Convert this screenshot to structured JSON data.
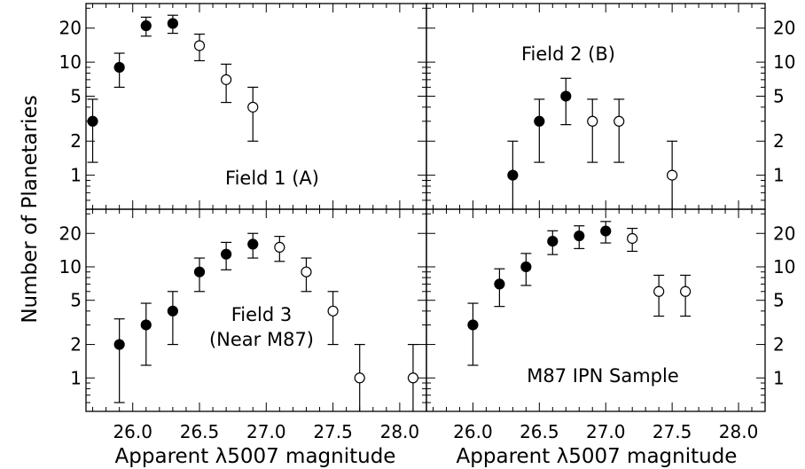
{
  "figure": {
    "ylabel": "Number of Planetaries",
    "xlabel_left": "Apparent λ5007 magnitude",
    "xlabel_right": "Apparent λ5007 magnitude",
    "xtick_labels": [
      "26.0",
      "26.5",
      "27.0",
      "27.5",
      "28.0"
    ],
    "ytick_labels": [
      "20",
      "10",
      "5",
      "2",
      "1"
    ]
  },
  "chart_data": [
    {
      "type": "scatter",
      "panel": "top-left",
      "annotation": "Field 1 (A)",
      "x_range": [
        25.65,
        28.2
      ],
      "y_scale": "log",
      "y_range": [
        0.5,
        33
      ],
      "points": [
        {
          "x": 25.7,
          "y": 3,
          "low": 1.3,
          "high": 4.7,
          "filled": true
        },
        {
          "x": 25.9,
          "y": 9,
          "low": 6,
          "high": 12,
          "filled": true
        },
        {
          "x": 26.1,
          "y": 21,
          "low": 17,
          "high": 25,
          "filled": true
        },
        {
          "x": 26.3,
          "y": 22,
          "low": 18,
          "high": 26,
          "filled": true
        },
        {
          "x": 26.5,
          "y": 14,
          "low": 10.3,
          "high": 17.7,
          "filled": false
        },
        {
          "x": 26.7,
          "y": 7,
          "low": 4.4,
          "high": 9.6,
          "filled": false
        },
        {
          "x": 26.9,
          "y": 4,
          "low": 2,
          "high": 6,
          "filled": false
        }
      ]
    },
    {
      "type": "scatter",
      "panel": "top-right",
      "annotation": "Field 2 (B)",
      "x_range": [
        25.65,
        28.2
      ],
      "y_scale": "log",
      "y_range": [
        0.5,
        33
      ],
      "points": [
        {
          "x": 26.3,
          "y": 1,
          "low": 0.5,
          "high": 2,
          "filled": true
        },
        {
          "x": 26.5,
          "y": 3,
          "low": 1.3,
          "high": 4.7,
          "filled": true
        },
        {
          "x": 26.7,
          "y": 5,
          "low": 2.8,
          "high": 7.2,
          "filled": true
        },
        {
          "x": 26.9,
          "y": 3,
          "low": 1.3,
          "high": 4.7,
          "filled": false
        },
        {
          "x": 27.1,
          "y": 3,
          "low": 1.3,
          "high": 4.7,
          "filled": false
        },
        {
          "x": 27.5,
          "y": 1,
          "low": 0.5,
          "high": 2,
          "filled": false
        }
      ]
    },
    {
      "type": "scatter",
      "panel": "bottom-left",
      "annotation": "Field 3 (Near M87)",
      "annotation_lines": [
        "Field 3",
        "(Near M87)"
      ],
      "x_range": [
        25.65,
        28.2
      ],
      "y_scale": "log",
      "y_range": [
        0.5,
        33
      ],
      "points": [
        {
          "x": 25.9,
          "y": 2,
          "low": 0.6,
          "high": 3.4,
          "filled": true
        },
        {
          "x": 26.1,
          "y": 3,
          "low": 1.3,
          "high": 4.7,
          "filled": true
        },
        {
          "x": 26.3,
          "y": 4,
          "low": 2,
          "high": 6,
          "filled": true
        },
        {
          "x": 26.5,
          "y": 9,
          "low": 6,
          "high": 12,
          "filled": true
        },
        {
          "x": 26.7,
          "y": 13,
          "low": 9.4,
          "high": 16.6,
          "filled": true
        },
        {
          "x": 26.9,
          "y": 16,
          "low": 12,
          "high": 20,
          "filled": true
        },
        {
          "x": 27.1,
          "y": 15,
          "low": 11.2,
          "high": 18.8,
          "filled": false
        },
        {
          "x": 27.3,
          "y": 9,
          "low": 6,
          "high": 12,
          "filled": false
        },
        {
          "x": 27.5,
          "y": 4,
          "low": 2,
          "high": 6,
          "filled": false
        },
        {
          "x": 27.7,
          "y": 1,
          "low": 0.5,
          "high": 2,
          "filled": false
        },
        {
          "x": 28.1,
          "y": 1,
          "low": 0.5,
          "high": 2,
          "filled": false
        }
      ]
    },
    {
      "type": "scatter",
      "panel": "bottom-right",
      "annotation": "M87 IPN Sample",
      "x_range": [
        25.65,
        28.2
      ],
      "y_scale": "log",
      "y_range": [
        0.5,
        33
      ],
      "points": [
        {
          "x": 26.0,
          "y": 3,
          "low": 1.3,
          "high": 4.7,
          "filled": true
        },
        {
          "x": 26.2,
          "y": 7,
          "low": 4.4,
          "high": 9.6,
          "filled": true
        },
        {
          "x": 26.4,
          "y": 10,
          "low": 6.8,
          "high": 13.2,
          "filled": true
        },
        {
          "x": 26.6,
          "y": 17,
          "low": 12.9,
          "high": 21.1,
          "filled": true
        },
        {
          "x": 26.8,
          "y": 19,
          "low": 14.6,
          "high": 23.4,
          "filled": true
        },
        {
          "x": 27.0,
          "y": 21,
          "low": 16.4,
          "high": 25.6,
          "filled": true
        },
        {
          "x": 27.2,
          "y": 18,
          "low": 13.8,
          "high": 22.2,
          "filled": false
        },
        {
          "x": 27.4,
          "y": 6,
          "low": 3.6,
          "high": 8.4,
          "filled": false
        },
        {
          "x": 27.6,
          "y": 6,
          "low": 3.6,
          "high": 8.4,
          "filled": false
        }
      ]
    }
  ]
}
